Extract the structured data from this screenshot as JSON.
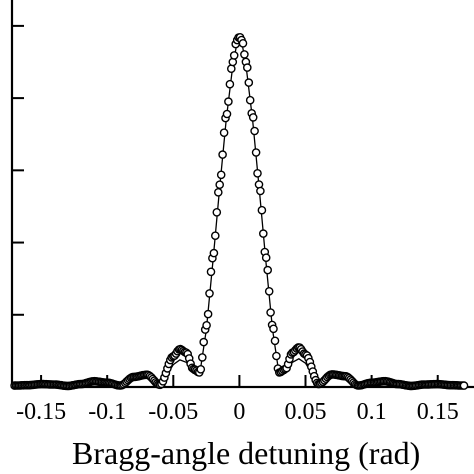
{
  "chart_data": {
    "type": "scatter",
    "title": "",
    "xlabel": "Bragg-angle detuning (rad)",
    "ylabel": "",
    "xlim": [
      -0.172,
      0.185
    ],
    "ylim": [
      0,
      1.08
    ],
    "x_ticks": [
      "-0.15",
      "-0.1",
      "-0.05",
      "0",
      "0.05",
      "0.1",
      "0.15"
    ],
    "x_tick_values": [
      -0.15,
      -0.1,
      -0.05,
      0,
      0.05,
      0.1,
      0.15
    ],
    "y_tick_values": [
      0.2,
      0.4,
      0.6,
      0.8,
      1.0
    ],
    "grid": false,
    "series": [
      {
        "style": "open-circle markers",
        "x": [
          -0.17,
          -0.16,
          -0.15,
          -0.14,
          -0.13,
          -0.12,
          -0.11,
          -0.1,
          -0.09,
          -0.08,
          -0.07,
          -0.06,
          -0.05,
          -0.045,
          -0.04,
          -0.035,
          -0.03,
          -0.025,
          -0.02,
          -0.015,
          -0.01,
          -0.005,
          -0.002,
          0,
          0.002,
          0.005,
          0.01,
          0.015,
          0.02,
          0.025,
          0.03,
          0.035,
          0.04,
          0.045,
          0.05,
          0.06,
          0.07,
          0.08,
          0.09,
          0.1,
          0.11,
          0.12,
          0.13,
          0.14,
          0.15,
          0.16,
          0.17
        ],
        "y": [
          0.004,
          0.005,
          0.008,
          0.007,
          0.003,
          0.008,
          0.016,
          0.012,
          0.004,
          0.028,
          0.034,
          0.006,
          0.085,
          0.105,
          0.095,
          0.05,
          0.04,
          0.17,
          0.36,
          0.56,
          0.75,
          0.9,
          0.96,
          0.97,
          0.96,
          0.9,
          0.75,
          0.56,
          0.36,
          0.17,
          0.04,
          0.05,
          0.095,
          0.11,
          0.09,
          0.008,
          0.035,
          0.03,
          0.004,
          0.012,
          0.016,
          0.008,
          0.003,
          0.007,
          0.008,
          0.005,
          0.004
        ]
      },
      {
        "style": "thin solid line",
        "x": [
          -0.17,
          -0.16,
          -0.15,
          -0.14,
          -0.13,
          -0.12,
          -0.11,
          -0.1,
          -0.09,
          -0.08,
          -0.07,
          -0.06,
          -0.05,
          -0.045,
          -0.04,
          -0.035,
          -0.03,
          -0.025,
          -0.02,
          -0.015,
          -0.01,
          -0.005,
          -0.002,
          0,
          0.002,
          0.005,
          0.01,
          0.015,
          0.02,
          0.025,
          0.03,
          0.035,
          0.04,
          0.045,
          0.05,
          0.06,
          0.07,
          0.08,
          0.09,
          0.1,
          0.11,
          0.12,
          0.13,
          0.14,
          0.15,
          0.16,
          0.17
        ],
        "y": [
          0.003,
          0.004,
          0.006,
          0.005,
          0.002,
          0.006,
          0.012,
          0.009,
          0.003,
          0.02,
          0.025,
          0.004,
          0.062,
          0.075,
          0.068,
          0.038,
          0.035,
          0.16,
          0.35,
          0.55,
          0.74,
          0.89,
          0.95,
          0.96,
          0.95,
          0.89,
          0.74,
          0.55,
          0.35,
          0.16,
          0.035,
          0.038,
          0.068,
          0.078,
          0.066,
          0.006,
          0.026,
          0.022,
          0.003,
          0.009,
          0.012,
          0.006,
          0.002,
          0.005,
          0.006,
          0.004,
          0.003
        ]
      }
    ]
  }
}
